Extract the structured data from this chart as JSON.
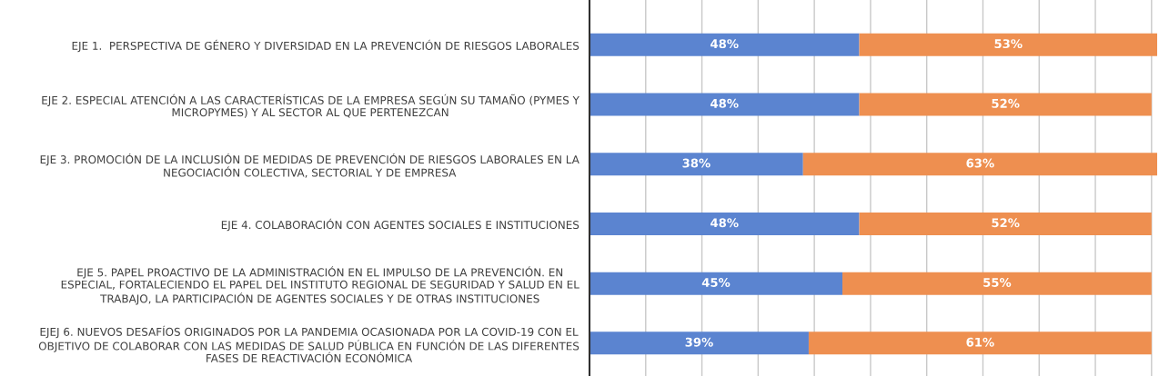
{
  "chart_data": {
    "type": "bar",
    "orientation": "horizontal",
    "stacked": true,
    "categories": [
      "EJE 1.  PERSPECTIVA DE GÉNERO Y DIVERSIDAD EN LA PREVENCIÓN DE RIESGOS LABORALES",
      "EJE 2. ESPECIAL ATENCIÓN A LAS CARACTERÍSTICAS DE LA EMPRESA SEGÚN SU TAMAÑO (PYMES Y\nMICROPYMES) Y AL SECTOR AL QUE PERTENEZCAN",
      "EJE 3. PROMOCIÓN DE LA INCLUSIÓN DE MEDIDAS DE PREVENCIÓN DE RIESGOS LABORALES EN LA\nNEGOCIACIÓN COLECTIVA, SECTORIAL Y DE EMPRESA",
      "EJE 4. COLABORACIÓN CON AGENTES SOCIALES E INSTITUCIONES",
      "EJE 5. PAPEL PROACTIVO DE LA ADMINISTRACIÓN EN EL IMPULSO DE LA PREVENCIÓN. EN\nESPECIAL, FORTALECIENDO EL PAPEL DEL INSTITUTO REGIONAL DE SEGURIDAD Y SALUD EN EL\nTRABAJO, LA PARTICIPACIÓN DE AGENTES SOCIALES Y DE OTRAS INSTITUCIONES",
      "EJEJ 6. NUEVOS DESAFÍOS ORIGINADOS POR LA PANDEMIA OCASIONADA POR LA COVID-19 CON EL\nOBJETIVO DE COLABORAR CON LAS MEDIDAS DE SALUD PÚBLICA EN FUNCIÓN DE LAS DIFERENTES\nFASES DE REACTIVACIÓN ECONÓMICA"
    ],
    "series": [
      {
        "color": "#5b84d0",
        "values": [
          48,
          48,
          38,
          48,
          45,
          39
        ],
        "value_labels": [
          "48%",
          "48%",
          "38%",
          "48%",
          "45%",
          "39%"
        ]
      },
      {
        "color": "#ee8f50",
        "values": [
          53,
          52,
          63,
          52,
          55,
          61
        ],
        "value_labels": [
          "53%",
          "52%",
          "63%",
          "52%",
          "55%",
          "61%"
        ]
      }
    ],
    "xlim": [
      0,
      101
    ],
    "xticks": [
      {
        "value": 0,
        "label": null
      },
      {
        "value": 10,
        "label": null
      },
      {
        "value": 20,
        "label": null
      },
      {
        "value": 30,
        "label": null
      },
      {
        "value": 40,
        "label": null
      },
      {
        "value": 50,
        "label": null
      },
      {
        "value": 60,
        "label": null
      },
      {
        "value": 70,
        "label": null
      },
      {
        "value": 80,
        "label": null
      },
      {
        "value": 90,
        "label": null
      },
      {
        "value": 100,
        "label": null
      }
    ],
    "grid": "x",
    "legend": false,
    "tick_labels": "y"
  }
}
